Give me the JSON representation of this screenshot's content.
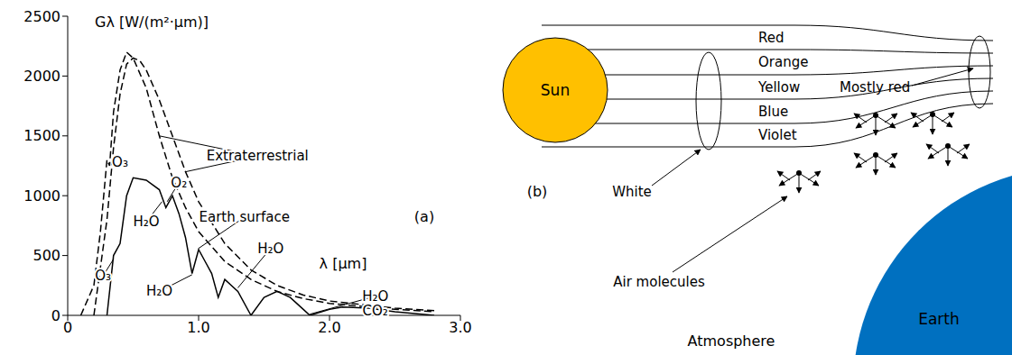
{
  "chart_data": {
    "type": "line",
    "y_label": "Gλ [W/(m²·μm)]",
    "x_label": "λ [μm]",
    "panel_label": "(a)",
    "xlim": [
      0,
      3
    ],
    "xticks": [
      0,
      {
        "value": 1,
        "label": "1.0"
      },
      {
        "value": 2,
        "label": "2.0"
      },
      {
        "value": 3,
        "label": "3.0"
      }
    ],
    "ylim": [
      0,
      2500
    ],
    "yticks": [
      0,
      500,
      1000,
      1500,
      2000,
      2500
    ],
    "grid": false,
    "series": [
      {
        "name": "Extraterrestrial",
        "color": "#000000",
        "line_style": "dashed",
        "label_at": [
          1.45,
          1330
        ],
        "label_to": [
          [
            0.7,
            1500
          ],
          [
            0.9,
            1200
          ]
        ],
        "x": [
          0.1,
          0.2,
          0.25,
          0.3,
          0.32,
          0.35,
          0.4,
          0.45,
          0.5,
          0.6,
          0.7,
          0.8,
          0.9,
          1.0,
          1.2,
          1.4,
          1.6,
          1.8,
          2.0,
          2.5,
          2.8
        ],
        "values": [
          0,
          250,
          700,
          1300,
          1250,
          1700,
          2050,
          2200,
          2150,
          1900,
          1500,
          1150,
          900,
          700,
          450,
          300,
          200,
          140,
          100,
          50,
          30
        ]
      },
      {
        "name": "Extraterrestrial",
        "color": "#000000",
        "line_style": "dashed",
        "x": [
          0.2,
          0.3,
          0.35,
          0.4,
          0.45,
          0.5,
          0.55,
          0.6,
          0.7,
          0.8,
          0.9,
          1.0,
          1.2,
          1.4,
          1.6,
          1.8,
          2.0,
          2.5,
          2.8
        ],
        "values": [
          0,
          800,
          1400,
          1850,
          2100,
          2150,
          2130,
          2050,
          1800,
          1500,
          1200,
          950,
          600,
          380,
          250,
          170,
          120,
          60,
          40
        ]
      },
      {
        "name": "Earth surface",
        "color": "#000000",
        "line_style": "solid",
        "label_at": [
          1.35,
          820
        ],
        "label_to": [
          [
            1.0,
            560
          ]
        ],
        "x": [
          0.3,
          0.35,
          0.4,
          0.45,
          0.5,
          0.6,
          0.7,
          0.75,
          0.8,
          0.85,
          0.9,
          0.95,
          1.0,
          1.05,
          1.1,
          1.15,
          1.2,
          1.3,
          1.4,
          1.5,
          1.6,
          1.7,
          1.8,
          1.85,
          2.0,
          2.1,
          2.3,
          2.5,
          2.8
        ],
        "values": [
          0,
          500,
          600,
          1000,
          1150,
          1130,
          1050,
          900,
          1000,
          850,
          650,
          350,
          550,
          450,
          350,
          150,
          300,
          200,
          0,
          150,
          200,
          150,
          50,
          0,
          50,
          70,
          60,
          30,
          0
        ]
      }
    ],
    "annotations": [
      {
        "text": "O₃",
        "x": 0.4,
        "y": 1280
      },
      {
        "text": "O₂",
        "x": 0.85,
        "y": 1110,
        "to": [
          0.76,
          950
        ]
      },
      {
        "text": "H₂O",
        "x": 0.6,
        "y": 780,
        "to": [
          0.72,
          950
        ]
      },
      {
        "text": "O₃",
        "x": 0.27,
        "y": 330,
        "to": [
          0.35,
          470
        ]
      },
      {
        "text": "H₂O",
        "x": 0.7,
        "y": 200,
        "to": [
          0.95,
          340
        ]
      },
      {
        "text": "H₂O",
        "x": 1.55,
        "y": 560,
        "to": [
          1.3,
          230
        ]
      },
      {
        "text": "H₂O",
        "x": 2.35,
        "y": 160,
        "to": [
          1.85,
          10
        ]
      },
      {
        "text": "CO₂",
        "x": 2.35,
        "y": 40
      }
    ]
  },
  "diagram": {
    "label": "(b)",
    "sun": "Sun",
    "bands": [
      "Red",
      "Orange",
      "Yellow",
      "Blue",
      "Violet"
    ],
    "white": "White",
    "mostly_red": "Mostly red",
    "air_molecules": "Air molecules",
    "earth": "Earth",
    "atmosphere": "Atmosphere"
  }
}
